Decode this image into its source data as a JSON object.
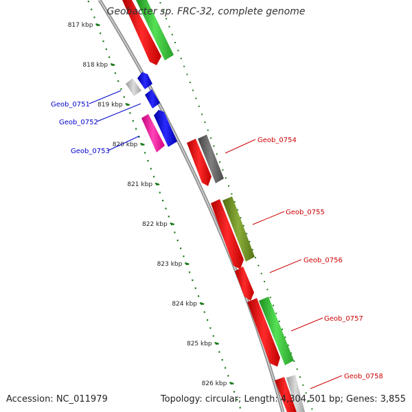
{
  "title": "Geobacter sp. FRC-32, complete genome",
  "footer": {
    "accession": "Accession: NC_011979",
    "summary": "Topology: circular; Length: 4,304,501 bp; Genes: 3,855"
  },
  "ruler": {
    "unit_suffix": " kbp",
    "ticks": [
      817,
      818,
      819,
      820,
      821,
      822,
      823,
      824,
      825,
      826
    ]
  },
  "genes": [
    {
      "id": "Geob_0751",
      "label": "Geob_0751",
      "label_color": "#0000cc",
      "side": "left"
    },
    {
      "id": "Geob_0752",
      "label": "Geob_0752",
      "label_color": "#0000cc",
      "side": "left"
    },
    {
      "id": "Geob_0753",
      "label": "Geob_0753",
      "label_color": "#0000cc",
      "side": "left"
    },
    {
      "id": "Geob_0754",
      "label": "Geob_0754",
      "label_color": "#cc0000",
      "side": "right"
    },
    {
      "id": "Geob_0755",
      "label": "Geob_0755",
      "label_color": "#cc0000",
      "side": "right"
    },
    {
      "id": "Geob_0756",
      "label": "Geob_0756",
      "label_color": "#cc0000",
      "side": "right"
    },
    {
      "id": "Geob_0757",
      "label": "Geob_0757",
      "label_color": "#cc0000",
      "side": "right"
    },
    {
      "id": "Geob_0758",
      "label": "Geob_0758",
      "label_color": "#cc0000",
      "side": "right"
    }
  ],
  "colors": {
    "backbone": "#9a9a9a",
    "ticks": "#1a7a1a",
    "cds_red": "#ee1111",
    "rrna_green": "#33cc33",
    "blue": "#1111ee",
    "pink": "#ff1aa6",
    "gray_light": "#b8b8b8",
    "gray_dark": "#666666",
    "olive": "#6b8e23"
  }
}
